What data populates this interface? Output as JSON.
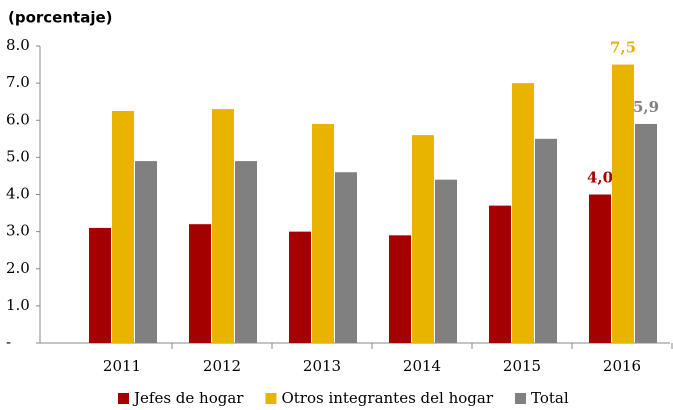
{
  "chart_data": {
    "type": "bar",
    "title": "(porcentaje)",
    "categories": [
      "2011",
      "2012",
      "2013",
      "2014",
      "2015",
      "2016"
    ],
    "series": [
      {
        "name": "Jefes de hogar",
        "color": "#a50000",
        "values": [
          3.1,
          3.2,
          3.0,
          2.9,
          3.7,
          4.0
        ],
        "value_labels": [
          null,
          null,
          null,
          null,
          null,
          "4,0"
        ]
      },
      {
        "name": "Otros integrantes del hogar",
        "color": "#e8b400",
        "values": [
          6.25,
          6.3,
          5.9,
          5.6,
          7.0,
          7.5
        ],
        "value_labels": [
          null,
          null,
          null,
          null,
          null,
          "7,5"
        ]
      },
      {
        "name": "Total",
        "color": "#808080",
        "values": [
          4.9,
          4.9,
          4.6,
          4.4,
          5.5,
          5.9
        ],
        "value_labels": [
          null,
          null,
          null,
          null,
          null,
          "5,9"
        ]
      }
    ],
    "ylim": [
      0,
      8
    ],
    "yticks": [
      {
        "value": 0,
        "label": "-"
      },
      {
        "value": 1,
        "label": "1.0"
      },
      {
        "value": 2,
        "label": "2.0"
      },
      {
        "value": 3,
        "label": "3.0"
      },
      {
        "value": 4,
        "label": "4.0"
      },
      {
        "value": 5,
        "label": "5.0"
      },
      {
        "value": 6,
        "label": "6.0"
      },
      {
        "value": 7,
        "label": "7.0"
      },
      {
        "value": 8,
        "label": "8.0"
      }
    ],
    "grid": false,
    "legend": "bottom"
  }
}
